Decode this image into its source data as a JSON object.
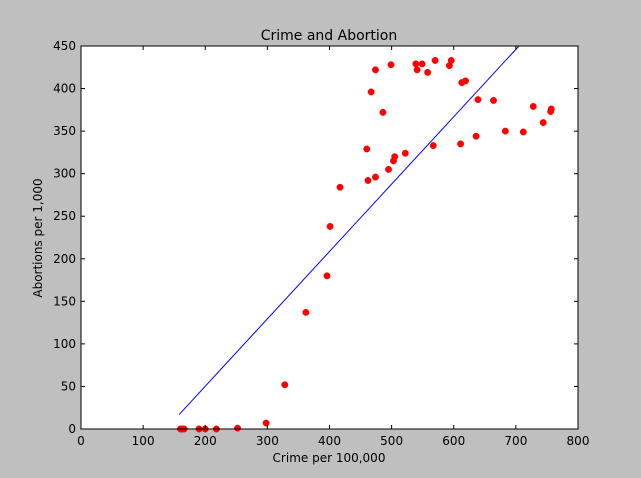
{
  "chart_data": {
    "type": "scatter",
    "title": "Crime and Abortion",
    "xlabel": "Crime per 100,000",
    "ylabel": "Abortions per 1,000",
    "xlim": [
      0,
      800
    ],
    "ylim": [
      0,
      450
    ],
    "xticks": [
      "0",
      "100",
      "200",
      "300",
      "400",
      "500",
      "600",
      "700",
      "800"
    ],
    "yticks": [
      "0",
      "50",
      "100",
      "150",
      "200",
      "250",
      "300",
      "350",
      "400",
      "450"
    ],
    "grid": false,
    "point_color": "#ff0000",
    "line_color": "#0000ff",
    "series": [
      {
        "type": "scatter",
        "points": [
          [
            160,
            0
          ],
          [
            163,
            0
          ],
          [
            166,
            0
          ],
          [
            190,
            0
          ],
          [
            200,
            0
          ],
          [
            218,
            0
          ],
          [
            252,
            1
          ],
          [
            298,
            7
          ],
          [
            328,
            52
          ],
          [
            362,
            137
          ],
          [
            396,
            180
          ],
          [
            401,
            238
          ],
          [
            417,
            284
          ],
          [
            460,
            329
          ],
          [
            462,
            292
          ],
          [
            467,
            396
          ],
          [
            474,
            296
          ],
          [
            474,
            422
          ],
          [
            486,
            372
          ],
          [
            495,
            305
          ],
          [
            499,
            428
          ],
          [
            503,
            315
          ],
          [
            505,
            320
          ],
          [
            522,
            324
          ],
          [
            539,
            429
          ],
          [
            541,
            422
          ],
          [
            549,
            429
          ],
          [
            558,
            419
          ],
          [
            567,
            333
          ],
          [
            570,
            433
          ],
          [
            593,
            427
          ],
          [
            596,
            433
          ],
          [
            611,
            335
          ],
          [
            613,
            407
          ],
          [
            619,
            409
          ],
          [
            636,
            344
          ],
          [
            639,
            387
          ],
          [
            664,
            386
          ],
          [
            683,
            350
          ],
          [
            712,
            349
          ],
          [
            728,
            379
          ],
          [
            744,
            360
          ],
          [
            756,
            373
          ],
          [
            757,
            376
          ]
        ]
      },
      {
        "type": "line",
        "x": [
          158,
          705
        ],
        "y": [
          17,
          450
        ]
      }
    ]
  }
}
